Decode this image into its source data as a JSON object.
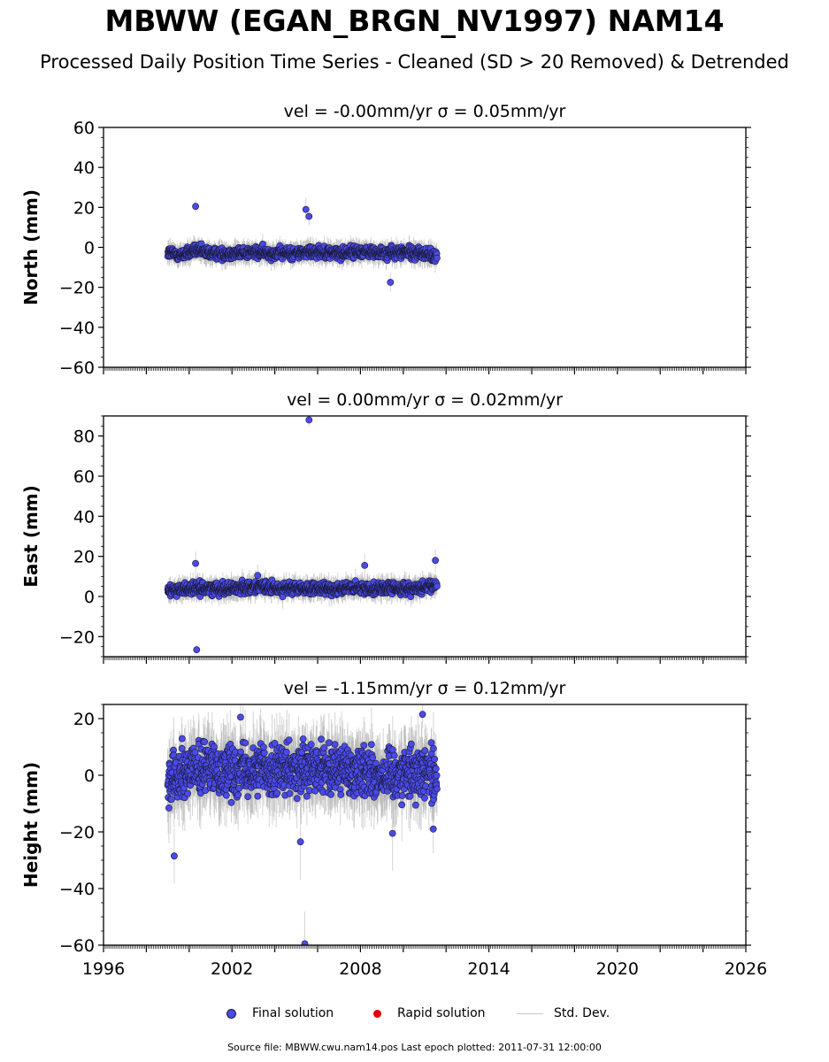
{
  "title": "MBWW (EGAN_BRGN_NV1997) NAM14",
  "subtitle": "Processed Daily Position Time Series - Cleaned (SD > 20 Removed) & Detrended",
  "legend": {
    "final_label": "Final solution",
    "rapid_label": "Rapid solution",
    "std_label": "Std. Dev."
  },
  "footer": "Source file: MBWW.cwu.nam14.pos  Last epoch plotted: 2011-07-31 12:00:00",
  "colors": {
    "final": "#4a4ae8",
    "final_edge": "#1a1a3a",
    "rapid": "#e00000",
    "stddev": "#b0b0b0"
  },
  "chart_data": [
    {
      "type": "scatter",
      "panel_title": "vel = -0.00mm/yr   σ = 0.05mm/yr",
      "ylabel": "North (mm)",
      "xlim": [
        1996,
        2026
      ],
      "ylim": [
        -60,
        60
      ],
      "yticks": [
        -60,
        -40,
        -20,
        0,
        20,
        40,
        60
      ],
      "data_range": [
        1999.0,
        2011.58
      ],
      "trend": [
        [
          1999.0,
          -2.5
        ],
        [
          1999.6,
          -4
        ],
        [
          2000.3,
          -1.5
        ],
        [
          2001.0,
          -3
        ],
        [
          2002.0,
          -3
        ],
        [
          2003.0,
          -2.5
        ],
        [
          2004.0,
          -3
        ],
        [
          2005.0,
          -3
        ],
        [
          2006.0,
          -2
        ],
        [
          2007.0,
          -3
        ],
        [
          2008.0,
          -2
        ],
        [
          2009.0,
          -3
        ],
        [
          2010.0,
          -2.5
        ],
        [
          2011.0,
          -3
        ],
        [
          2011.58,
          -5
        ]
      ],
      "spread": 2.6,
      "err_base": 4,
      "outliers": [
        [
          2000.3,
          20.5
        ],
        [
          2005.45,
          19
        ],
        [
          2005.6,
          15.5
        ],
        [
          2009.4,
          -17.5
        ]
      ],
      "x_labels": []
    },
    {
      "type": "scatter",
      "panel_title": "vel = 0.00mm/yr   σ = 0.02mm/yr",
      "ylabel": "East (mm)",
      "xlim": [
        1996,
        2026
      ],
      "ylim": [
        -30,
        90
      ],
      "yticks": [
        -20,
        0,
        20,
        40,
        60,
        80
      ],
      "data_range": [
        1999.0,
        2011.58
      ],
      "trend": [
        [
          1999.0,
          3
        ],
        [
          2000.0,
          4
        ],
        [
          2001.0,
          4
        ],
        [
          2002.0,
          4
        ],
        [
          2003.0,
          5
        ],
        [
          2004.0,
          4
        ],
        [
          2005.0,
          4
        ],
        [
          2006.0,
          3.5
        ],
        [
          2007.0,
          4
        ],
        [
          2008.0,
          4
        ],
        [
          2009.0,
          4
        ],
        [
          2010.0,
          4
        ],
        [
          2011.0,
          4
        ],
        [
          2011.58,
          6
        ]
      ],
      "spread": 2.6,
      "err_base": 4,
      "outliers": [
        [
          2000.3,
          16.5
        ],
        [
          2000.35,
          -26.5
        ],
        [
          2005.6,
          88
        ],
        [
          2008.2,
          15.5
        ],
        [
          2011.5,
          18
        ],
        [
          2003.2,
          10.5
        ]
      ],
      "x_labels": []
    },
    {
      "type": "scatter",
      "panel_title": "vel = -1.15mm/yr   σ = 0.12mm/yr",
      "ylabel": "Height (mm)",
      "xlim": [
        1996,
        2026
      ],
      "ylim": [
        -60,
        25
      ],
      "yticks": [
        -60,
        -40,
        -20,
        0,
        20
      ],
      "data_range": [
        1999.0,
        2011.58
      ],
      "trend": [
        [
          1999.0,
          0
        ],
        [
          2000.0,
          2
        ],
        [
          2001.0,
          2
        ],
        [
          2002.0,
          2
        ],
        [
          2003.0,
          3
        ],
        [
          2004.0,
          2
        ],
        [
          2005.0,
          1
        ],
        [
          2006.0,
          2
        ],
        [
          2007.0,
          2
        ],
        [
          2008.0,
          2
        ],
        [
          2009.0,
          0
        ],
        [
          2010.0,
          1
        ],
        [
          2011.0,
          2
        ],
        [
          2011.58,
          0
        ]
      ],
      "spread": 8,
      "err_base": 9,
      "outliers": [
        [
          1999.3,
          -28.5
        ],
        [
          2005.2,
          -23.5
        ],
        [
          2005.4,
          -59.5
        ],
        [
          2009.5,
          -20.5
        ],
        [
          2010.9,
          21.5
        ],
        [
          2002.4,
          20.5
        ],
        [
          2011.4,
          -19
        ]
      ],
      "x_labels": [
        "1996",
        "2002",
        "2008",
        "2014",
        "2020",
        "2026"
      ]
    }
  ]
}
